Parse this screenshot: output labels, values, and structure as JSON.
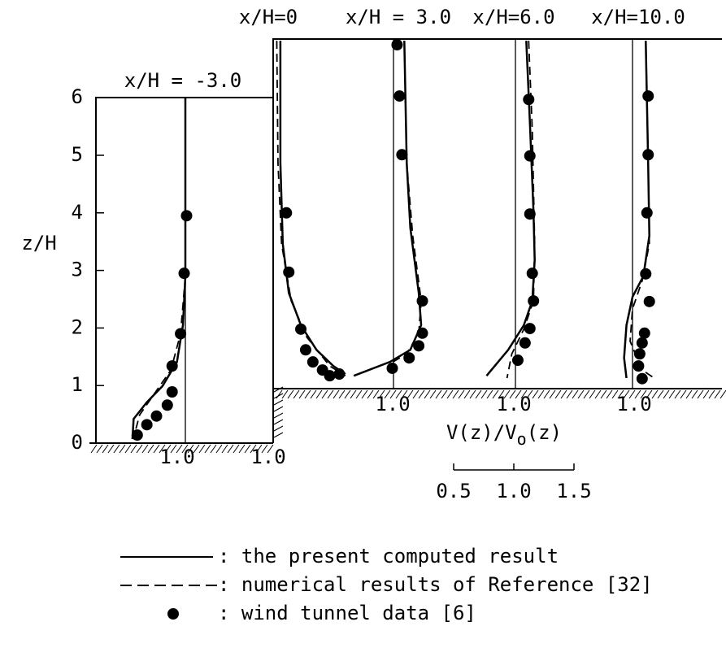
{
  "chart_data": {
    "type": "profile",
    "ylabel": "z/H",
    "ylim": [
      0,
      7
    ],
    "yticks": [
      0,
      1,
      2,
      3,
      4,
      5,
      6
    ],
    "xlabel": {
      "main": "V(z)/V",
      "sub": "o",
      "tail": "(z)"
    },
    "scale_ticks": [
      {
        "value": 0.5,
        "label": "0.5"
      },
      {
        "value": 1.0,
        "label": "1.0"
      },
      {
        "value": 1.5,
        "label": "1.5"
      }
    ],
    "series": [
      {
        "name": ": the present computed result",
        "style": "solid",
        "color": "#000000"
      },
      {
        "name": ": numerical results of Reference [32]",
        "style": "dashed",
        "color": "#000000"
      },
      {
        "name": ": wind tunnel data [6]",
        "style": "dots",
        "color": "#000000"
      }
    ],
    "profiles": [
      {
        "name": "x/H = -3.0",
        "ref_labels": [
          "1.0",
          "1.0"
        ],
        "curves": [
          {
            "v": [
              1.0,
              1.0,
              0.98,
              0.93,
              0.81,
              0.68,
              0.57,
              0.56
            ],
            "z": [
              6.0,
              2.9,
              2.05,
              1.41,
              0.99,
              0.71,
              0.42,
              0.07
            ]
          },
          {
            "v": [
              1.0,
              0.96,
              0.88,
              0.74,
              0.62,
              0.57
            ],
            "z": [
              2.9,
              1.9,
              1.27,
              0.85,
              0.49,
              0.1
            ]
          },
          {
            "v": [
              1.01,
              0.99,
              0.96,
              0.89,
              0.89,
              0.85,
              0.76,
              0.68,
              0.6
            ],
            "z": [
              3.95,
              2.95,
              1.9,
              1.34,
              0.89,
              0.66,
              0.47,
              0.32,
              0.14
            ]
          }
        ]
      },
      {
        "name": "x/H=0",
        "ref_labels": [],
        "curves": [
          {
            "v": [
              1.06,
              1.06,
              1.08,
              1.13,
              1.23,
              1.36,
              1.5,
              1.6
            ],
            "z": [
              6.99,
              4.87,
              3.46,
              2.61,
              2.05,
              1.62,
              1.34,
              1.2
            ]
          },
          {
            "v": [
              1.03,
              1.04,
              1.07,
              1.15,
              1.28,
              1.47,
              1.6
            ],
            "z": [
              6.99,
              4.87,
              3.46,
              2.47,
              1.84,
              1.34,
              1.17
            ]
          },
          {
            "v": [
              1.11,
              1.13,
              1.23,
              1.27,
              1.33,
              1.41,
              1.47,
              1.55
            ],
            "z": [
              4.0,
              2.97,
              1.98,
              1.62,
              1.41,
              1.27,
              1.17,
              1.2
            ]
          }
        ]
      },
      {
        "name": "x/H = 3.0",
        "ref_labels": [
          "1.0"
        ],
        "curves": [
          {
            "v": [
              1.09,
              1.11,
              1.14,
              1.21,
              1.23,
              1.14,
              0.97,
              0.67
            ],
            "z": [
              6.99,
              4.87,
              3.74,
              2.61,
              2.05,
              1.62,
              1.41,
              1.17
            ]
          },
          {
            "v": [
              1.09,
              1.11,
              1.16,
              1.23,
              1.21,
              1.11,
              0.97
            ],
            "z": [
              6.99,
              4.87,
              3.6,
              2.47,
              1.91,
              1.55,
              1.38
            ]
          },
          {
            "v": [
              1.03,
              1.05,
              1.07,
              1.24,
              1.24,
              1.21,
              1.13,
              0.99
            ],
            "z": [
              6.92,
              6.03,
              5.01,
              2.47,
              1.91,
              1.69,
              1.48,
              1.3
            ]
          }
        ]
      },
      {
        "name": "x/H=6.0",
        "ref_labels": [
          "1.0"
        ],
        "curves": [
          {
            "v": [
              1.09,
              1.12,
              1.15,
              1.16,
              1.14,
              1.07,
              0.94,
              0.76
            ],
            "z": [
              6.99,
              5.58,
              4.03,
              3.18,
              2.47,
              2.05,
              1.62,
              1.17
            ]
          },
          {
            "v": [
              1.11,
              1.14,
              1.16,
              1.15,
              1.07,
              0.97,
              0.93
            ],
            "z": [
              6.99,
              5.44,
              3.46,
              2.47,
              1.98,
              1.55,
              1.13
            ]
          },
          {
            "v": [
              1.11,
              1.12,
              1.12,
              1.14,
              1.15,
              1.12,
              1.08,
              1.02
            ],
            "z": [
              5.97,
              4.99,
              3.98,
              2.95,
              2.47,
              1.99,
              1.74,
              1.44
            ]
          }
        ]
      },
      {
        "name": "x/H=10.0",
        "ref_labels": [
          "1.0"
        ],
        "curves": [
          {
            "v": [
              1.11,
              1.13,
              1.14,
              1.09,
              1.0,
              0.95,
              0.93,
              0.95
            ],
            "z": [
              6.99,
              4.87,
              3.6,
              2.9,
              2.54,
              2.05,
              1.48,
              1.13
            ]
          },
          {
            "v": [
              1.11,
              1.13,
              1.14,
              1.08,
              1.0,
              0.98,
              1.08,
              1.18
            ],
            "z": [
              6.99,
              4.87,
              3.46,
              2.82,
              2.33,
              1.77,
              1.27,
              1.13
            ]
          },
          {
            "v": [
              1.13,
              1.13,
              1.12,
              1.11,
              1.14,
              1.1,
              1.08,
              1.06,
              1.05,
              1.08
            ],
            "z": [
              6.03,
              5.01,
              4.0,
              2.94,
              2.46,
              1.91,
              1.74,
              1.55,
              1.34,
              1.12
            ]
          }
        ]
      }
    ]
  }
}
